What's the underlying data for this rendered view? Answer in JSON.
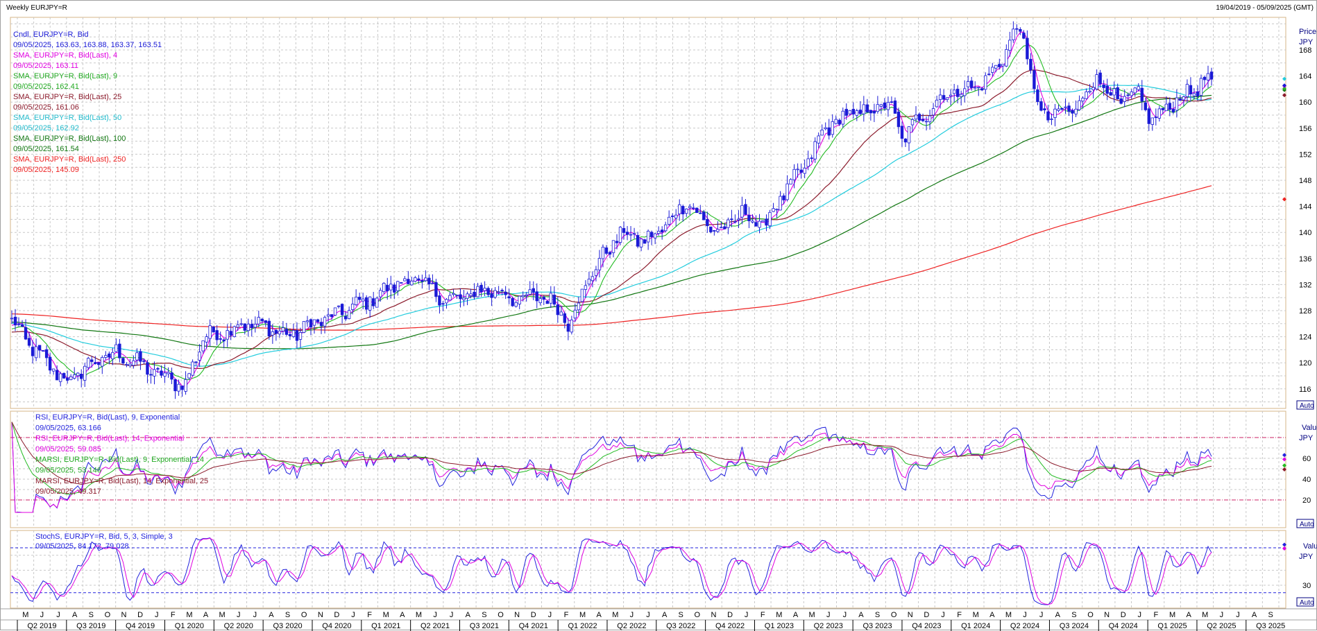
{
  "header": {
    "title": "Weekly EURJPY=R",
    "date_range": "19/04/2019 - 05/09/2025 (GMT)"
  },
  "colors": {
    "candle": "#1a1ad6",
    "sma4": "#e000e0",
    "sma9": "#22bb22",
    "sma25": "#8b1a2b",
    "sma50": "#22ccdd",
    "sma100": "#117711",
    "sma250": "#ee2222",
    "rsi9": "#2222dd",
    "rsi14": "#e000e0",
    "marsi9": "#22bb22",
    "marsi14": "#8b1a2b",
    "stoch_k": "#2222dd",
    "stoch_d": "#e000e0",
    "ref_line": "#cc2266",
    "panel_border": "#d4b487"
  },
  "price_panel": {
    "axis_title": "Price",
    "axis_unit": "JPY",
    "auto_label": "Auto",
    "legend": [
      {
        "text": "Cndl, EURJPY=R, Bid",
        "color": "#1a1ad6"
      },
      {
        "text": "09/05/2025, 163.63, 163.88, 163.37, 163.51",
        "color": "#1a1ad6"
      },
      {
        "text": "SMA, EURJPY=R, Bid(Last),  4",
        "color": "#e000e0"
      },
      {
        "text": "09/05/2025, 163.11",
        "color": "#e000e0"
      },
      {
        "text": "SMA, EURJPY=R, Bid(Last),  9",
        "color": "#22aa22"
      },
      {
        "text": "09/05/2025, 162.41",
        "color": "#22aa22"
      },
      {
        "text": "SMA, EURJPY=R, Bid(Last),  25",
        "color": "#8b1a2b"
      },
      {
        "text": "09/05/2025, 161.06",
        "color": "#8b1a2b"
      },
      {
        "text": "SMA, EURJPY=R, Bid(Last),  50",
        "color": "#22bbcc"
      },
      {
        "text": "09/05/2025, 162.92",
        "color": "#22bbcc"
      },
      {
        "text": "SMA, EURJPY=R, Bid(Last),  100",
        "color": "#117711"
      },
      {
        "text": "09/05/2025, 161.54",
        "color": "#117711"
      },
      {
        "text": "SMA, EURJPY=R, Bid(Last),  250",
        "color": "#ee2222"
      },
      {
        "text": "09/05/2025, 145.09",
        "color": "#ee2222"
      }
    ],
    "ticks": [
      "116",
      "120",
      "124",
      "128",
      "132",
      "136",
      "140",
      "144",
      "148",
      "152",
      "156",
      "160",
      "164",
      "168"
    ]
  },
  "rsi_panel": {
    "axis_title": "Value",
    "axis_unit": "JPY",
    "auto_label": "Auto",
    "legend": [
      {
        "text": "RSI, EURJPY=R, Bid(Last),  9, Exponential",
        "color": "#2222dd"
      },
      {
        "text": "09/05/2025, 63.166",
        "color": "#2222dd"
      },
      {
        "text": "RSI, EURJPY=R, Bid(Last),  14, Exponential",
        "color": "#e000e0"
      },
      {
        "text": "09/05/2025, 59.085",
        "color": "#e000e0"
      },
      {
        "text": "MARSI, EURJPY=R, Bid(Last),  9, Exponential, 14",
        "color": "#22aa22"
      },
      {
        "text": "09/05/2025, 53.146",
        "color": "#22aa22"
      },
      {
        "text": "MARSI, EURJPY=R, Bid(Last),  14, Exponential, 25",
        "color": "#8b1a2b"
      },
      {
        "text": "09/05/2025, 49.317",
        "color": "#8b1a2b"
      }
    ],
    "ticks": [
      "20",
      "40",
      "60"
    ]
  },
  "stoch_panel": {
    "axis_title": "Value",
    "axis_unit": "JPY",
    "auto_label": "Auto",
    "legend": [
      {
        "text": "StochS, EURJPY=R, Bid,  5, 3, Simple, 3",
        "color": "#2222dd"
      },
      {
        "text": "09/05/2025, 84.172, 79.028",
        "color": "#2222dd"
      }
    ],
    "ticks": [
      "30"
    ]
  },
  "x_axis": {
    "months": [
      "M",
      "J",
      "J",
      "A",
      "S",
      "O",
      "N",
      "D",
      "J",
      "F",
      "M",
      "A",
      "M",
      "J",
      "J",
      "A",
      "S",
      "O",
      "N",
      "D",
      "J",
      "F",
      "M",
      "A",
      "M",
      "J",
      "J",
      "A",
      "S",
      "O",
      "N",
      "D",
      "J",
      "F",
      "M",
      "A",
      "M",
      "J",
      "J",
      "A",
      "S",
      "O",
      "N",
      "D",
      "J",
      "F",
      "M",
      "A",
      "M",
      "J",
      "J",
      "A",
      "S",
      "O",
      "N",
      "D",
      "J",
      "F",
      "M",
      "A",
      "M",
      "J",
      "J",
      "A",
      "S",
      "O",
      "N",
      "D",
      "J",
      "F",
      "M",
      "A",
      "M",
      "J",
      "J",
      "A",
      "S"
    ],
    "quarters": [
      "Q2 2019",
      "Q3 2019",
      "Q4 2019",
      "Q1 2020",
      "Q2 2020",
      "Q3 2020",
      "Q4 2020",
      "Q1 2021",
      "Q2 2021",
      "Q3 2021",
      "Q4 2021",
      "Q1 2022",
      "Q2 2022",
      "Q3 2022",
      "Q4 2022",
      "Q1 2023",
      "Q2 2023",
      "Q3 2023",
      "Q4 2023",
      "Q1 2024",
      "Q2 2024",
      "Q3 2024",
      "Q4 2024",
      "Q1 2025",
      "Q2 2025",
      "Q3 2025"
    ]
  },
  "chart_data": {
    "type": "line",
    "title": "Weekly EURJPY=R",
    "x_start": "2019-05",
    "x_end": "2025-09",
    "price_ylim": [
      113,
      173
    ],
    "price_anchors": [
      [
        0,
        126.5
      ],
      [
        4,
        123.5
      ],
      [
        8,
        121
      ],
      [
        13,
        118.5
      ],
      [
        17,
        117
      ],
      [
        21,
        119.5
      ],
      [
        26,
        120.5
      ],
      [
        30,
        121.5
      ],
      [
        36,
        120
      ],
      [
        43,
        118
      ],
      [
        50,
        116.5
      ],
      [
        55,
        124
      ],
      [
        60,
        124.5
      ],
      [
        66,
        126
      ],
      [
        74,
        125.5
      ],
      [
        80,
        124
      ],
      [
        86,
        126
      ],
      [
        92,
        127
      ],
      [
        98,
        128.5
      ],
      [
        104,
        130
      ],
      [
        110,
        132
      ],
      [
        116,
        133
      ],
      [
        122,
        130.5
      ],
      [
        128,
        129.5
      ],
      [
        134,
        131
      ],
      [
        140,
        131
      ],
      [
        146,
        129.5
      ],
      [
        152,
        130.5
      ],
      [
        158,
        128
      ],
      [
        160,
        126
      ],
      [
        166,
        133
      ],
      [
        172,
        138
      ],
      [
        176,
        140
      ],
      [
        182,
        138.5
      ],
      [
        188,
        141
      ],
      [
        194,
        145
      ],
      [
        198,
        142
      ],
      [
        204,
        140
      ],
      [
        210,
        143
      ],
      [
        216,
        141
      ],
      [
        222,
        146
      ],
      [
        228,
        150
      ],
      [
        234,
        156
      ],
      [
        240,
        158
      ],
      [
        246,
        158.5
      ],
      [
        252,
        160
      ],
      [
        256,
        154.5
      ],
      [
        262,
        158
      ],
      [
        268,
        161
      ],
      [
        274,
        162
      ],
      [
        280,
        163
      ],
      [
        286,
        168
      ],
      [
        290,
        172
      ],
      [
        292,
        166.5
      ],
      [
        296,
        158
      ],
      [
        300,
        158
      ],
      [
        306,
        159
      ],
      [
        312,
        164
      ],
      [
        318,
        160
      ],
      [
        324,
        161
      ],
      [
        328,
        157
      ],
      [
        334,
        160
      ],
      [
        340,
        162
      ],
      [
        344,
        163.5
      ]
    ],
    "sma_last": {
      "sma4": 163.11,
      "sma9": 162.41,
      "sma25": 161.06,
      "sma50": 162.92,
      "sma100": 161.54,
      "sma250": 145.09
    },
    "last_candle": {
      "date": "09/05/2025",
      "open": 163.63,
      "high": 163.88,
      "low": 163.37,
      "close": 163.51
    },
    "rsi_last": {
      "rsi9": 63.166,
      "rsi14": 59.085,
      "marsi9": 53.146,
      "marsi14": 49.317
    },
    "stoch_last": {
      "k": 84.172,
      "d": 79.028
    }
  }
}
